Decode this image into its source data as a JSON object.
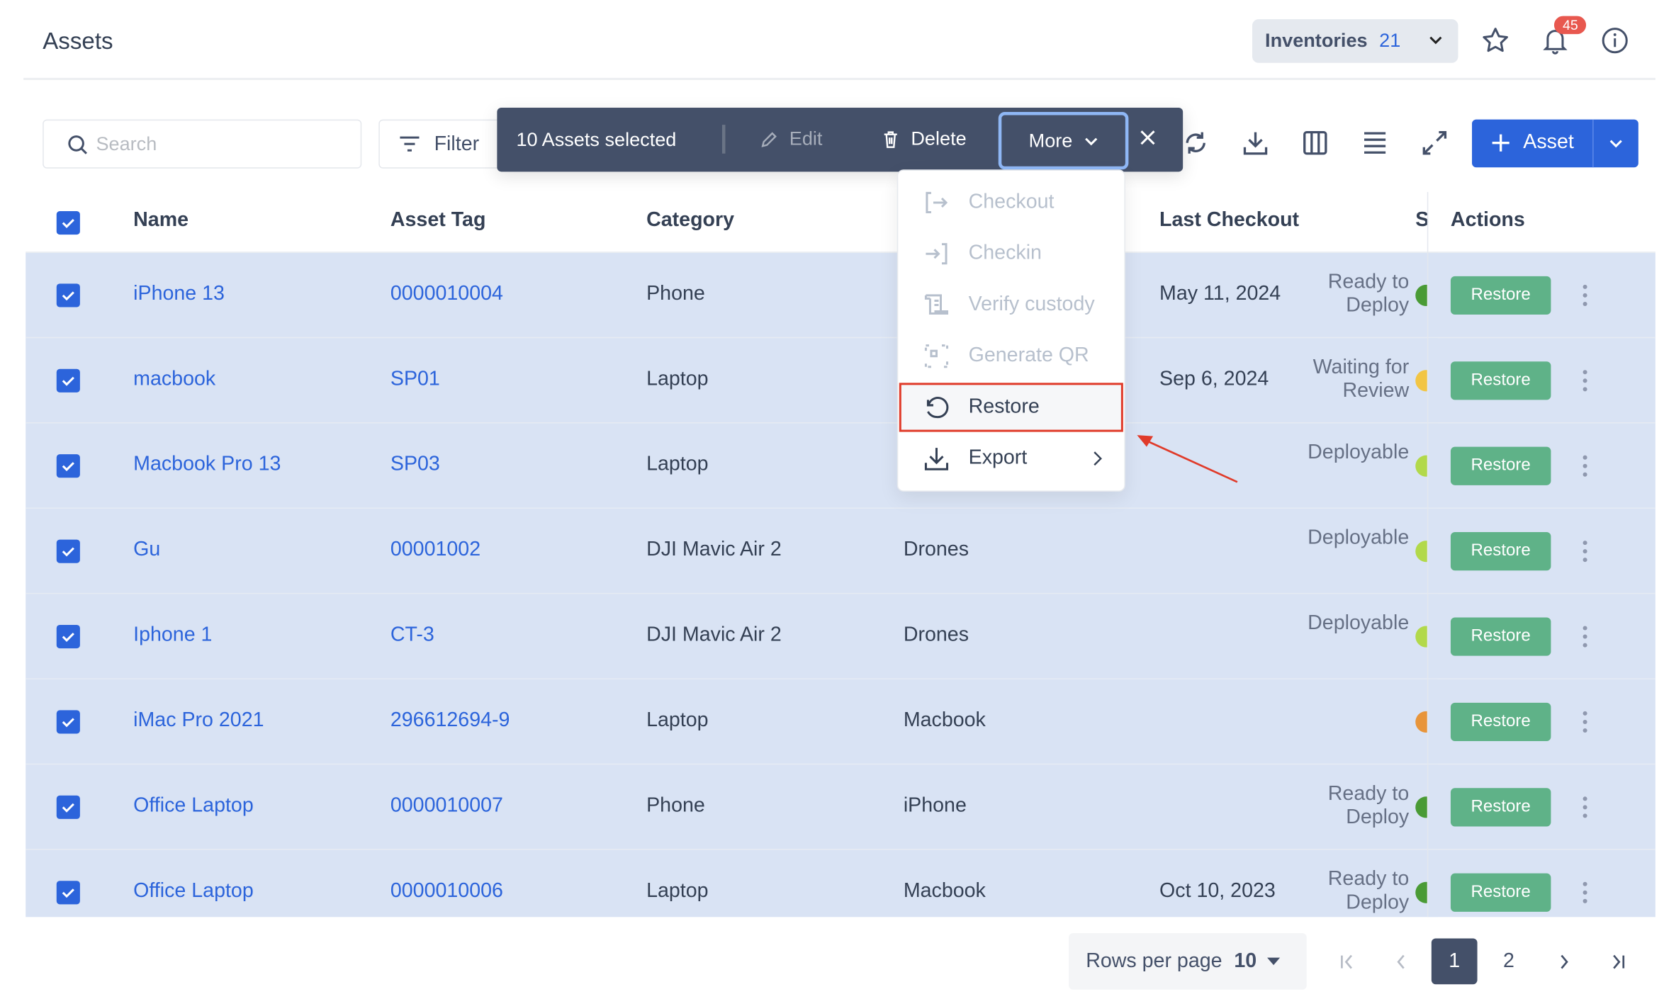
{
  "header": {
    "title": "Assets",
    "inventory_label": "Inventories",
    "inventory_count": "21",
    "notification_count": "45"
  },
  "toolbar": {
    "search_placeholder": "Search",
    "filter_label": "Filter",
    "add_label": "Asset",
    "selection": {
      "count_label": "10 Assets selected",
      "edit_label": "Edit",
      "delete_label": "Delete",
      "more_label": "More"
    }
  },
  "more_menu": {
    "items": [
      {
        "label": "Checkout",
        "icon": "checkout-icon",
        "enabled": false
      },
      {
        "label": "Checkin",
        "icon": "checkin-icon",
        "enabled": false
      },
      {
        "label": "Verify custody",
        "icon": "verify-custody-icon",
        "enabled": false
      },
      {
        "label": "Generate QR",
        "icon": "qr-icon",
        "enabled": false
      },
      {
        "label": "Restore",
        "icon": "restore-icon",
        "enabled": true,
        "highlighted": true
      },
      {
        "label": "Export",
        "icon": "export-icon",
        "enabled": true,
        "submenu": true
      }
    ]
  },
  "table": {
    "headers": {
      "name": "Name",
      "asset_tag": "Asset Tag",
      "category": "Category",
      "last_checkout": "Last Checkout",
      "status": "S",
      "actions": "Actions"
    },
    "rows": [
      {
        "name": "iPhone 13",
        "tag": "0000010004",
        "category": "Phone",
        "model": "",
        "last_checkout": "May 11, 2024",
        "status": "Ready to Deploy",
        "status_color": "#4a9b35",
        "action": "Restore"
      },
      {
        "name": "macbook",
        "tag": "SP01",
        "category": "Laptop",
        "model": "",
        "last_checkout": "Sep 6, 2024",
        "status": "Waiting for Review",
        "status_color": "#f2c544",
        "action": "Restore"
      },
      {
        "name": "Macbook Pro 13",
        "tag": "SP03",
        "category": "Laptop",
        "model": "",
        "last_checkout": "",
        "status": "Deployable",
        "status_color": "#b2d94a",
        "action": "Restore"
      },
      {
        "name": "Gu",
        "tag": "00001002",
        "category": "DJI Mavic Air 2",
        "model": "Drones",
        "last_checkout": "",
        "status": "Deployable",
        "status_color": "#b2d94a",
        "action": "Restore"
      },
      {
        "name": "Iphone 1",
        "tag": "CT-3",
        "category": "DJI Mavic Air 2",
        "model": "Drones",
        "last_checkout": "",
        "status": "Deployable",
        "status_color": "#b2d94a",
        "action": "Restore"
      },
      {
        "name": "iMac Pro 2021",
        "tag": "296612694-9",
        "category": "Laptop",
        "model": "Macbook",
        "last_checkout": "",
        "status": "",
        "status_color": "#e8953a",
        "action": "Restore"
      },
      {
        "name": "Office Laptop",
        "tag": "0000010007",
        "category": "Phone",
        "model": "iPhone",
        "last_checkout": "",
        "status": "Ready to Deploy",
        "status_color": "#4a9b35",
        "action": "Restore"
      },
      {
        "name": "Office Laptop",
        "tag": "0000010006",
        "category": "Laptop",
        "model": "Macbook",
        "last_checkout": "Oct 10, 2023",
        "status": "Ready to Deploy",
        "status_color": "#4a9b35",
        "action": "Restore"
      }
    ]
  },
  "pagination": {
    "rows_per_page_label": "Rows per page",
    "rows_per_page": "10",
    "pages": [
      "1",
      "2"
    ],
    "current_page": "1"
  },
  "colors": {
    "primary": "#2c64db",
    "selection_bar": "#445069",
    "restore_button": "#5fb288",
    "row_selected": "#d9e3f4",
    "annotation": "#e03b2a"
  }
}
